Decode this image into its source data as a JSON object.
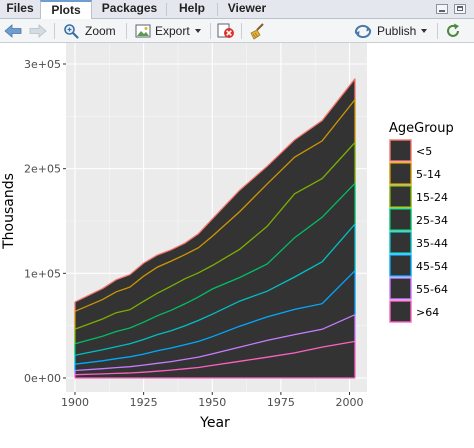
{
  "tabs": [
    {
      "label": "Files",
      "active": false
    },
    {
      "label": "Plots",
      "active": true
    },
    {
      "label": "Packages",
      "active": false
    },
    {
      "label": "Help",
      "active": false
    },
    {
      "label": "Viewer",
      "active": false
    }
  ],
  "toolbar": {
    "zoom_label": "Zoom",
    "export_label": "Export",
    "publish_label": "Publish"
  },
  "colors": {
    "panel_bg": "#ebebeb",
    "area_fill": "#333333",
    "accent": "#6e9ecf"
  },
  "chart_data": {
    "type": "area",
    "stacked": true,
    "xlabel": "Year",
    "ylabel": "Thousands",
    "xlim": [
      1900,
      2002
    ],
    "ylim": [
      0,
      300000
    ],
    "x_ticks": [
      1900,
      1925,
      1950,
      1975,
      2000
    ],
    "y_ticks": [
      0,
      100000,
      200000,
      300000
    ],
    "y_tick_labels": [
      "0e+00",
      "1e+05",
      "2e+05",
      "3e+05"
    ],
    "x_tick_labels": [
      "1900",
      "1925",
      "1950",
      "1975",
      "2000"
    ],
    "grid": true,
    "legend": {
      "title": "AgeGroup",
      "placement": "right",
      "labels": [
        "<5",
        "5-14",
        "15-24",
        "25-34",
        "35-44",
        "45-54",
        "55-64",
        ">64"
      ]
    },
    "x": [
      1900,
      1910,
      1915,
      1920,
      1925,
      1930,
      1935,
      1940,
      1945,
      1950,
      1960,
      1970,
      1980,
      1990,
      2002
    ],
    "series": [
      {
        "name": ">64",
        "color": "#ff61c3",
        "values": [
          3200,
          3900,
          4400,
          4800,
          5500,
          6500,
          7500,
          8800,
          10000,
          12000,
          16000,
          19900,
          24000,
          29500,
          35000
        ]
      },
      {
        "name": "55-64",
        "color": "#c77cff",
        "values": [
          4000,
          5000,
          5500,
          6000,
          6800,
          7500,
          8200,
          9000,
          10000,
          11000,
          13500,
          16000,
          17500,
          17000,
          25500
        ]
      },
      {
        "name": "45-54",
        "color": "#00a9ff",
        "values": [
          6000,
          7500,
          8500,
          9500,
          10500,
          12000,
          13000,
          14000,
          15000,
          16500,
          20000,
          22500,
          24000,
          24500,
          42000
        ]
      },
      {
        "name": "35-44",
        "color": "#00bfc4",
        "values": [
          8500,
          10500,
          11500,
          12500,
          14000,
          15500,
          16500,
          18000,
          20000,
          21500,
          24000,
          24500,
          31000,
          40000,
          44500
        ]
      },
      {
        "name": "25-34",
        "color": "#00be67",
        "values": [
          11000,
          13000,
          14500,
          15000,
          16500,
          18000,
          19500,
          21000,
          22500,
          24000,
          22500,
          26000,
          37500,
          42500,
          39000
        ]
      },
      {
        "name": "15-24",
        "color": "#7cae00",
        "values": [
          14000,
          16500,
          18000,
          17500,
          20000,
          21500,
          23000,
          24000,
          23000,
          22500,
          27000,
          36000,
          42000,
          37000,
          39000
        ]
      },
      {
        "name": "5-14",
        "color": "#cd9600",
        "values": [
          17000,
          18500,
          20000,
          21500,
          24000,
          25000,
          24000,
          23000,
          24000,
          28000,
          36000,
          40500,
          35000,
          36000,
          41000
        ]
      },
      {
        "name": "<5",
        "color": "#f8766d",
        "values": [
          9000,
          10500,
          11500,
          12000,
          12500,
          11500,
          10800,
          11000,
          13500,
          16500,
          20500,
          17000,
          16500,
          19500,
          20000
        ]
      }
    ]
  }
}
